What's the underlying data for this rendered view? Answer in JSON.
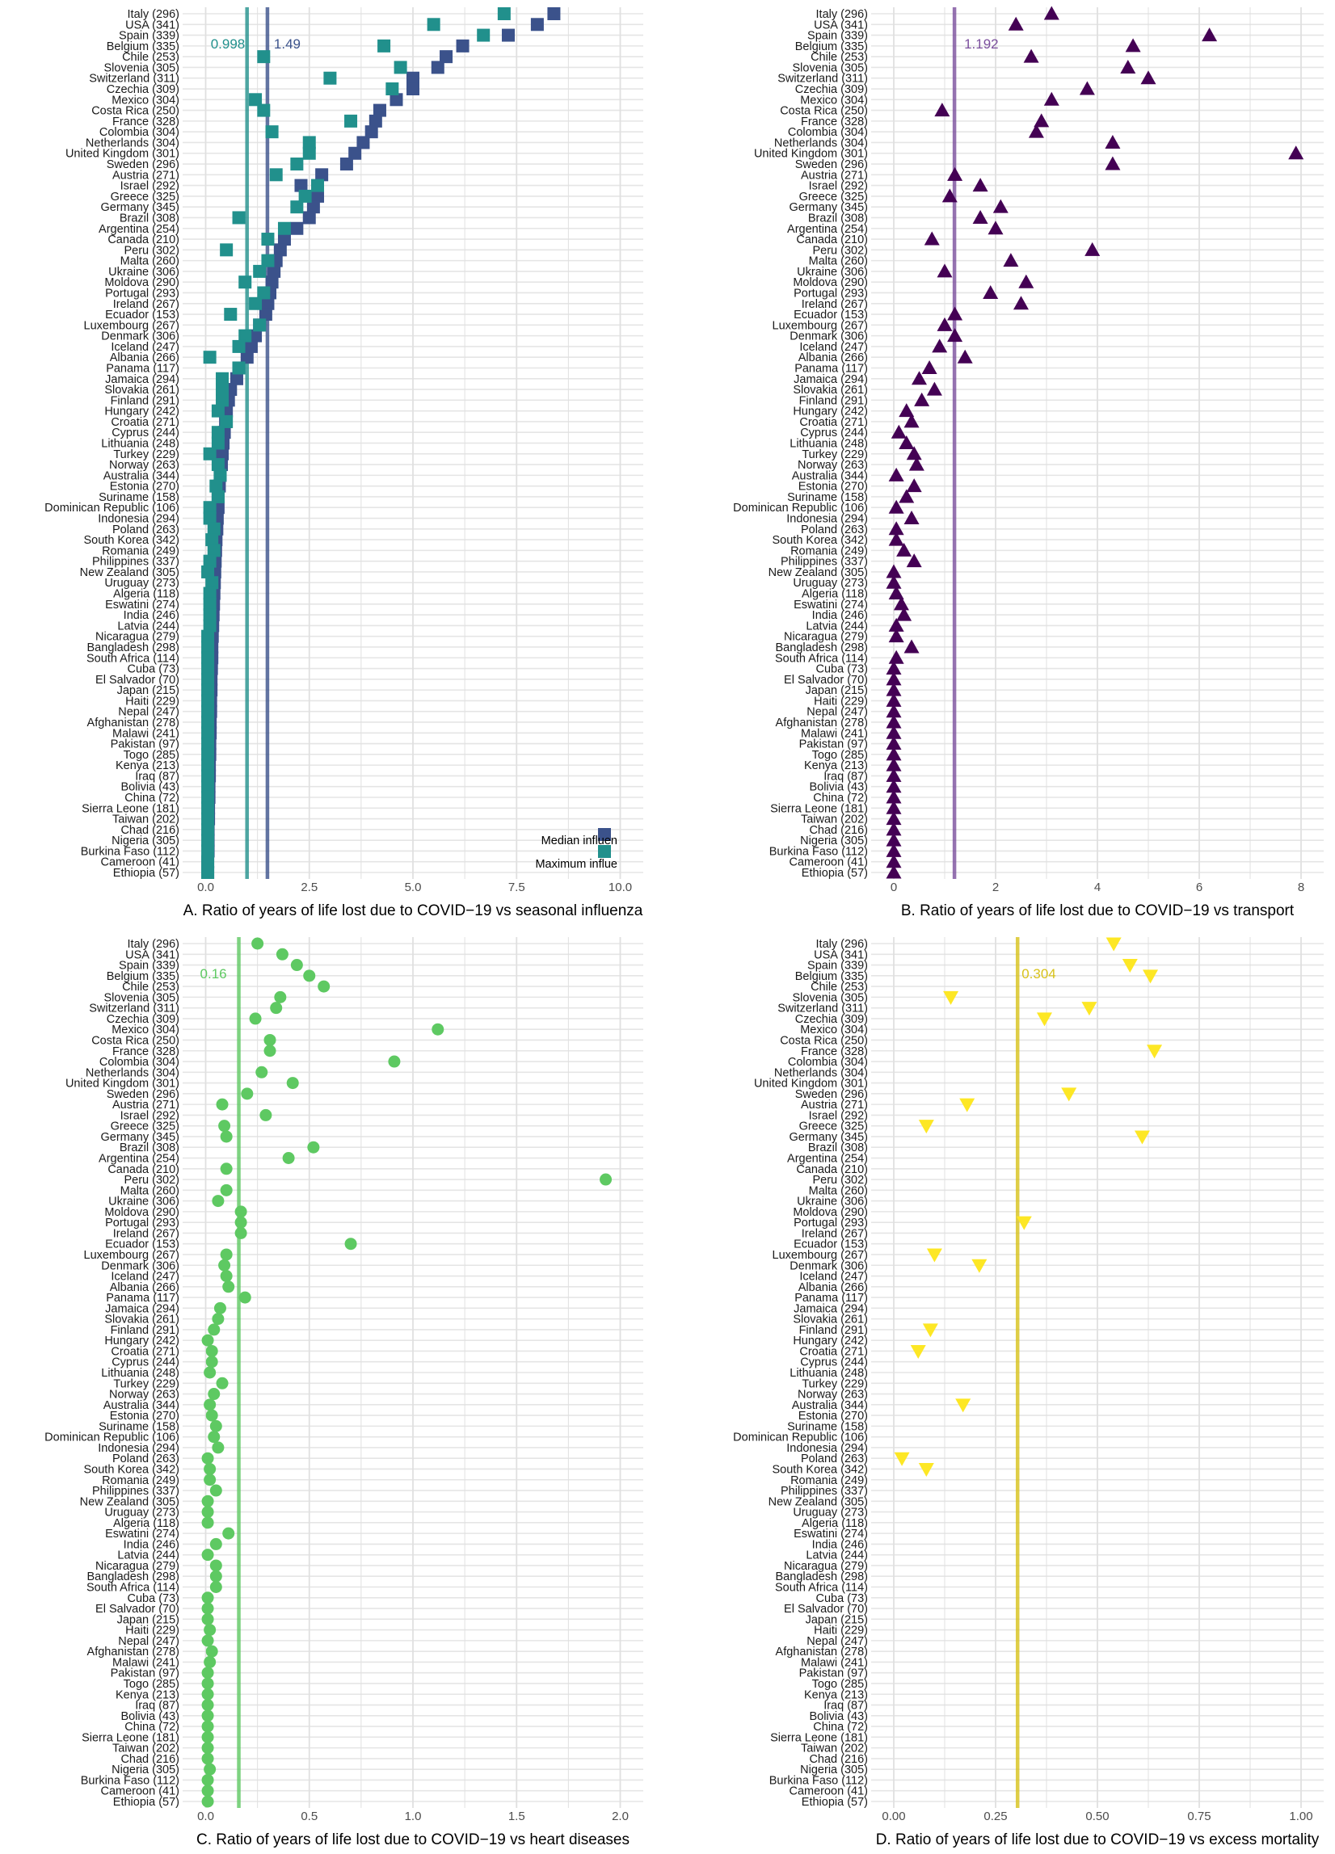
{
  "chart_data": [
    {
      "type": "scatter",
      "panel": "A",
      "xlabel": "A. Ratio of years of life lost due to COVID−19 vs seasonal influenza",
      "xlim": [
        0,
        10
      ],
      "xticks": [
        0,
        2.5,
        5,
        7.5,
        10
      ],
      "tick_labels": [
        "0.0",
        "2.5",
        "5.0",
        "7.5",
        "10.0"
      ],
      "grid": "on",
      "categories": [
        "Italy (296)",
        "USA (341)",
        "Spain (339)",
        "Belgium (335)",
        "Chile (253)",
        "Slovenia (305)",
        "Switzerland (311)",
        "Czechia (309)",
        "Mexico (304)",
        "Costa Rica (250)",
        "France (328)",
        "Colombia (304)",
        "Netherlands (304)",
        "United Kingdom (301)",
        "Sweden (296)",
        "Austria (271)",
        "Israel (292)",
        "Greece (325)",
        "Germany (345)",
        "Brazil (308)",
        "Argentina (254)",
        "Canada (210)",
        "Peru (302)",
        "Malta (260)",
        "Ukraine (306)",
        "Moldova (290)",
        "Portugal (293)",
        "Ireland (267)",
        "Ecuador (153)",
        "Luxembourg (267)",
        "Denmark (306)",
        "Iceland (247)",
        "Albania (266)",
        "Panama (117)",
        "Jamaica (294)",
        "Slovakia (261)",
        "Finland (291)",
        "Hungary (242)",
        "Croatia (271)",
        "Cyprus (244)",
        "Lithuania (248)",
        "Turkey (229)",
        "Norway (263)",
        "Australia (344)",
        "Estonia (270)",
        "Suriname (158)",
        "Dominican Republic (106)",
        "Indonesia (294)",
        "Poland (263)",
        "South Korea (342)",
        "Romania (249)",
        "Philippines (337)",
        "New Zealand (305)",
        "Uruguay (273)",
        "Algeria (118)",
        "Eswatini (274)",
        "India (246)",
        "Latvia (244)",
        "Nicaragua (279)",
        "Bangladesh (298)",
        "South Africa (114)",
        "Cuba (73)",
        "El Salvador (70)",
        "Japan (215)",
        "Haiti (229)",
        "Nepal (247)",
        "Afghanistan (278)",
        "Malawi (241)",
        "Pakistan (97)",
        "Togo (285)",
        "Kenya (213)",
        "Iraq (87)",
        "Bolivia (43)",
        "China (72)",
        "Sierra Leone (181)",
        "Taiwan (202)",
        "Chad (216)",
        "Nigeria (305)",
        "Burkina Faso (112)",
        "Cameroon (41)",
        "Ethiopia (57)"
      ],
      "series": [
        {
          "name": "Median influenza",
          "color": "#3b528b",
          "marker": "square",
          "values": [
            8.4,
            8.0,
            7.3,
            6.2,
            5.8,
            5.6,
            5.0,
            5.0,
            4.6,
            4.2,
            4.1,
            4.0,
            3.8,
            3.6,
            3.4,
            2.8,
            2.3,
            2.7,
            2.6,
            2.5,
            2.2,
            1.9,
            1.8,
            1.7,
            1.65,
            1.6,
            1.55,
            1.5,
            1.45,
            1.3,
            1.2,
            1.1,
            1.0,
            0.8,
            0.75,
            0.6,
            0.55,
            0.5,
            0.48,
            0.45,
            0.42,
            0.4,
            0.38,
            0.35,
            0.33,
            0.3,
            0.3,
            0.28,
            0.27,
            0.25,
            0.24,
            0.23,
            0.22,
            0.21,
            0.2,
            0.19,
            0.18,
            0.17,
            0.16,
            0.15,
            0.15,
            0.14,
            0.13,
            0.13,
            0.12,
            0.12,
            0.11,
            0.11,
            0.1,
            0.1,
            0.09,
            0.09,
            0.08,
            0.08,
            0.07,
            0.07,
            0.06,
            0.06,
            0.06,
            0.05,
            0.05
          ]
        },
        {
          "name": "Maximum influenza",
          "color": "#21908c",
          "marker": "square",
          "values": [
            7.2,
            5.5,
            6.7,
            4.3,
            1.4,
            4.7,
            3.0,
            4.5,
            1.2,
            1.4,
            3.5,
            1.6,
            2.5,
            2.5,
            2.2,
            1.7,
            2.7,
            2.4,
            2.2,
            0.8,
            1.9,
            1.5,
            0.5,
            1.5,
            1.3,
            0.95,
            1.4,
            1.2,
            0.6,
            1.3,
            0.95,
            0.8,
            0.1,
            0.8,
            0.4,
            0.4,
            0.4,
            0.3,
            0.5,
            0.3,
            0.3,
            0.1,
            0.3,
            0.35,
            0.25,
            0.3,
            0.1,
            0.1,
            0.2,
            0.15,
            0.2,
            0.1,
            0.05,
            0.15,
            0.1,
            0.1,
            0.1,
            0.1,
            0.05,
            0.05,
            0.05,
            0.05,
            0.05,
            0.05,
            0.05,
            0.05,
            0.05,
            0.05,
            0.05,
            0.05,
            0.05,
            0.05,
            0.05,
            0.05,
            0.05,
            0.05,
            0.05,
            0.05,
            0.05,
            0.05,
            0.05
          ]
        }
      ],
      "reference_lines": [
        {
          "value": 0.998,
          "label": "0.998",
          "color": "#21908c"
        },
        {
          "value": 1.49,
          "label": "1.49",
          "color": "#3b528b"
        }
      ],
      "legend": {
        "placement": "bottom-right",
        "entries": [
          "Median influen",
          "Maximum influe"
        ]
      }
    },
    {
      "type": "scatter",
      "panel": "B",
      "xlabel": "B. Ratio of years of life lost due to COVID−19 vs transport",
      "xlim": [
        0,
        8
      ],
      "xticks": [
        0,
        2,
        4,
        6,
        8
      ],
      "tick_labels": [
        "0",
        "2",
        "4",
        "6",
        "8"
      ],
      "grid": "on",
      "categories": [
        "Italy (296)",
        "USA (341)",
        "Spain (339)",
        "Belgium (335)",
        "Chile (253)",
        "Slovenia (305)",
        "Switzerland (311)",
        "Czechia (309)",
        "Mexico (304)",
        "Costa Rica (250)",
        "France (328)",
        "Colombia (304)",
        "Netherlands (304)",
        "United Kingdom (301)",
        "Sweden (296)",
        "Austria (271)",
        "Israel (292)",
        "Greece (325)",
        "Germany (345)",
        "Brazil (308)",
        "Argentina (254)",
        "Canada (210)",
        "Peru (302)",
        "Malta (260)",
        "Ukraine (306)",
        "Moldova (290)",
        "Portugal (293)",
        "Ireland (267)",
        "Ecuador (153)",
        "Luxembourg (267)",
        "Denmark (306)",
        "Iceland (247)",
        "Albania (266)",
        "Panama (117)",
        "Jamaica (294)",
        "Slovakia (261)",
        "Finland (291)",
        "Hungary (242)",
        "Croatia (271)",
        "Cyprus (244)",
        "Lithuania (248)",
        "Turkey (229)",
        "Norway (263)",
        "Australia (344)",
        "Estonia (270)",
        "Suriname (158)",
        "Dominican Republic (106)",
        "Indonesia (294)",
        "Poland (263)",
        "South Korea (342)",
        "Romania (249)",
        "Philippines (337)",
        "New Zealand (305)",
        "Uruguay (273)",
        "Algeria (118)",
        "Eswatini (274)",
        "India (246)",
        "Latvia (244)",
        "Nicaragua (279)",
        "Bangladesh (298)",
        "South Africa (114)",
        "Cuba (73)",
        "El Salvador (70)",
        "Japan (215)",
        "Haiti (229)",
        "Nepal (247)",
        "Afghanistan (278)",
        "Malawi (241)",
        "Pakistan (97)",
        "Togo (285)",
        "Kenya (213)",
        "Iraq (87)",
        "Bolivia (43)",
        "China (72)",
        "Sierra Leone (181)",
        "Taiwan (202)",
        "Chad (216)",
        "Nigeria (305)",
        "Burkina Faso (112)",
        "Cameroon (41)",
        "Ethiopia (57)"
      ],
      "series": [
        {
          "name": "",
          "color": "#440154",
          "marker": "triangle-up",
          "values": [
            3.1,
            2.4,
            6.2,
            4.7,
            2.7,
            4.6,
            5.0,
            3.8,
            3.1,
            0.95,
            2.9,
            2.8,
            4.3,
            7.9,
            4.3,
            1.2,
            1.7,
            1.1,
            2.1,
            1.7,
            2.0,
            0.75,
            3.9,
            2.3,
            1.0,
            2.6,
            1.9,
            2.5,
            1.2,
            1.0,
            1.2,
            0.9,
            1.4,
            0.7,
            0.5,
            0.8,
            0.55,
            0.25,
            0.35,
            0.1,
            0.25,
            0.4,
            0.45,
            0.05,
            0.4,
            0.25,
            0.05,
            0.35,
            0.05,
            0.05,
            0.2,
            0.4,
            0.0,
            0.0,
            0.05,
            0.15,
            0.2,
            0.05,
            0.05,
            0.35,
            0.05,
            0.0,
            0.0,
            0.0,
            0.0,
            0.0,
            0.0,
            0.0,
            0.0,
            0.0,
            0.0,
            0.0,
            0.0,
            0.0,
            0.0,
            0.0,
            0.0,
            0.0,
            0.0,
            0.0,
            0.0
          ]
        }
      ],
      "reference_lines": [
        {
          "value": 1.192,
          "label": "1.192",
          "color": "#7b4f9d"
        }
      ]
    },
    {
      "type": "scatter",
      "panel": "C",
      "xlabel": "C. Ratio of years of life lost due to COVID−19 vs heart diseases",
      "xlim": [
        0,
        2
      ],
      "xticks": [
        0,
        0.5,
        1,
        1.5,
        2
      ],
      "tick_labels": [
        "0.0",
        "0.5",
        "1.0",
        "1.5",
        "2.0"
      ],
      "grid": "on",
      "categories": [
        "Italy (296)",
        "USA (341)",
        "Spain (339)",
        "Belgium (335)",
        "Chile (253)",
        "Slovenia (305)",
        "Switzerland (311)",
        "Czechia (309)",
        "Mexico (304)",
        "Costa Rica (250)",
        "France (328)",
        "Colombia (304)",
        "Netherlands (304)",
        "United Kingdom (301)",
        "Sweden (296)",
        "Austria (271)",
        "Israel (292)",
        "Greece (325)",
        "Germany (345)",
        "Brazil (308)",
        "Argentina (254)",
        "Canada (210)",
        "Peru (302)",
        "Malta (260)",
        "Ukraine (306)",
        "Moldova (290)",
        "Portugal (293)",
        "Ireland (267)",
        "Ecuador (153)",
        "Luxembourg (267)",
        "Denmark (306)",
        "Iceland (247)",
        "Albania (266)",
        "Panama (117)",
        "Jamaica (294)",
        "Slovakia (261)",
        "Finland (291)",
        "Hungary (242)",
        "Croatia (271)",
        "Cyprus (244)",
        "Lithuania (248)",
        "Turkey (229)",
        "Norway (263)",
        "Australia (344)",
        "Estonia (270)",
        "Suriname (158)",
        "Dominican Republic (106)",
        "Indonesia (294)",
        "Poland (263)",
        "South Korea (342)",
        "Romania (249)",
        "Philippines (337)",
        "New Zealand (305)",
        "Uruguay (273)",
        "Algeria (118)",
        "Eswatini (274)",
        "India (246)",
        "Latvia (244)",
        "Nicaragua (279)",
        "Bangladesh (298)",
        "South Africa (114)",
        "Cuba (73)",
        "El Salvador (70)",
        "Japan (215)",
        "Haiti (229)",
        "Nepal (247)",
        "Afghanistan (278)",
        "Malawi (241)",
        "Pakistan (97)",
        "Togo (285)",
        "Kenya (213)",
        "Iraq (87)",
        "Bolivia (43)",
        "China (72)",
        "Sierra Leone (181)",
        "Taiwan (202)",
        "Chad (216)",
        "Nigeria (305)",
        "Burkina Faso (112)",
        "Cameroon (41)",
        "Ethiopia (57)"
      ],
      "series": [
        {
          "name": "",
          "color": "#5ec962",
          "marker": "circle",
          "values": [
            0.25,
            0.37,
            0.44,
            0.5,
            0.57,
            0.36,
            0.34,
            0.24,
            1.12,
            0.31,
            0.31,
            0.91,
            0.27,
            0.42,
            0.2,
            0.08,
            0.29,
            0.09,
            0.1,
            0.52,
            0.4,
            0.1,
            1.93,
            0.1,
            0.06,
            0.17,
            0.17,
            0.17,
            0.7,
            0.1,
            0.09,
            0.1,
            0.11,
            0.19,
            0.07,
            0.06,
            0.04,
            0.01,
            0.03,
            0.03,
            0.02,
            0.08,
            0.04,
            0.02,
            0.03,
            0.05,
            0.04,
            0.06,
            0.01,
            0.02,
            0.02,
            0.05,
            0.01,
            0.01,
            0.01,
            0.11,
            0.05,
            0.01,
            0.05,
            0.05,
            0.05,
            0.01,
            0.01,
            0.01,
            0.02,
            0.01,
            0.03,
            0.02,
            0.01,
            0.01,
            0.01,
            0.01,
            0.01,
            0.01,
            0.01,
            0.01,
            0.01,
            0.02,
            0.01,
            0.01,
            0.01
          ]
        }
      ],
      "reference_lines": [
        {
          "value": 0.16,
          "label": "0.16",
          "color": "#5ec962"
        }
      ]
    },
    {
      "type": "scatter",
      "panel": "D",
      "xlabel": "D. Ratio of years of life lost due to COVID−19 vs excess mortality",
      "xlim": [
        0,
        1
      ],
      "xticks": [
        0,
        0.25,
        0.5,
        0.75,
        1
      ],
      "tick_labels": [
        "0.00",
        "0.25",
        "0.50",
        "0.75",
        "1.00"
      ],
      "grid": "on",
      "categories": [
        "Italy (296)",
        "USA (341)",
        "Spain (339)",
        "Belgium (335)",
        "Chile (253)",
        "Slovenia (305)",
        "Switzerland (311)",
        "Czechia (309)",
        "Mexico (304)",
        "Costa Rica (250)",
        "France (328)",
        "Colombia (304)",
        "Netherlands (304)",
        "United Kingdom (301)",
        "Sweden (296)",
        "Austria (271)",
        "Israel (292)",
        "Greece (325)",
        "Germany (345)",
        "Brazil (308)",
        "Argentina (254)",
        "Canada (210)",
        "Peru (302)",
        "Malta (260)",
        "Ukraine (306)",
        "Moldova (290)",
        "Portugal (293)",
        "Ireland (267)",
        "Ecuador (153)",
        "Luxembourg (267)",
        "Denmark (306)",
        "Iceland (247)",
        "Albania (266)",
        "Panama (117)",
        "Jamaica (294)",
        "Slovakia (261)",
        "Finland (291)",
        "Hungary (242)",
        "Croatia (271)",
        "Cyprus (244)",
        "Lithuania (248)",
        "Turkey (229)",
        "Norway (263)",
        "Australia (344)",
        "Estonia (270)",
        "Suriname (158)",
        "Dominican Republic (106)",
        "Indonesia (294)",
        "Poland (263)",
        "South Korea (342)",
        "Romania (249)",
        "Philippines (337)",
        "New Zealand (305)",
        "Uruguay (273)",
        "Algeria (118)",
        "Eswatini (274)",
        "India (246)",
        "Latvia (244)",
        "Nicaragua (279)",
        "Bangladesh (298)",
        "South Africa (114)",
        "Cuba (73)",
        "El Salvador (70)",
        "Japan (215)",
        "Haiti (229)",
        "Nepal (247)",
        "Afghanistan (278)",
        "Malawi (241)",
        "Pakistan (97)",
        "Togo (285)",
        "Kenya (213)",
        "Iraq (87)",
        "Bolivia (43)",
        "China (72)",
        "Sierra Leone (181)",
        "Taiwan (202)",
        "Chad (216)",
        "Nigeria (305)",
        "Burkina Faso (112)",
        "Cameroon (41)",
        "Ethiopia (57)"
      ],
      "series": [
        {
          "name": "",
          "color": "#fde725",
          "marker": "triangle-down",
          "values": [
            0.54,
            null,
            0.58,
            0.63,
            null,
            0.14,
            0.48,
            0.37,
            null,
            null,
            0.64,
            null,
            null,
            null,
            0.43,
            0.18,
            null,
            0.08,
            0.61,
            null,
            null,
            null,
            null,
            null,
            null,
            null,
            0.32,
            null,
            null,
            0.1,
            0.21,
            null,
            null,
            null,
            null,
            null,
            0.09,
            null,
            0.06,
            null,
            null,
            null,
            null,
            0.17,
            null,
            null,
            null,
            null,
            0.02,
            0.08,
            null,
            null,
            null,
            null,
            null,
            null,
            null,
            null,
            null,
            null,
            null,
            null,
            null,
            null,
            null,
            null,
            null,
            null,
            null,
            null,
            null,
            null,
            null,
            null,
            null,
            null,
            null,
            null,
            null,
            null,
            null
          ]
        }
      ],
      "reference_lines": [
        {
          "value": 0.304,
          "label": "0.304",
          "color": "#d8c21a"
        }
      ]
    }
  ]
}
